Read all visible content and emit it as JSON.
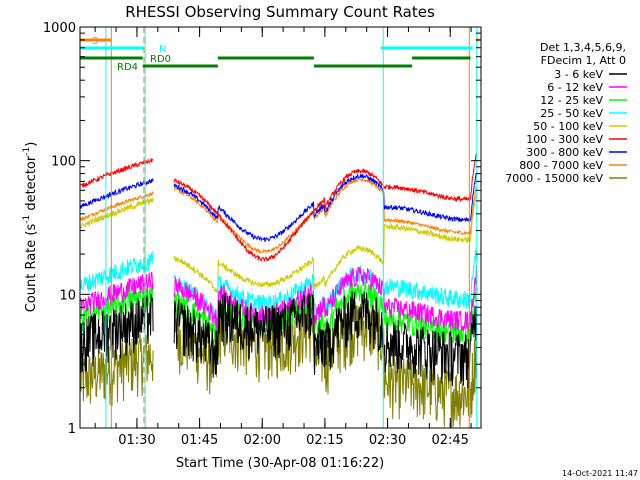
{
  "chart_data": {
    "type": "line",
    "title": "RHESSI Observing Summary Count Rates",
    "xlabel": "Start Time (30-Apr-08 01:16:22)",
    "ylabel_main": "Count Rate (s",
    "ylabel_sup1": "-1",
    "ylabel_mid": " detector",
    "ylabel_sup2": "-1",
    "ylabel_end": ")",
    "yscale": "log",
    "ylim": [
      1,
      1000
    ],
    "xlim_minutes": [
      0,
      96
    ],
    "x_start": "01:16:22",
    "xticks": [
      {
        "t": 13.63,
        "label": "01:30"
      },
      {
        "t": 28.63,
        "label": "01:45"
      },
      {
        "t": 43.63,
        "label": "02:00"
      },
      {
        "t": 58.63,
        "label": "02:15"
      },
      {
        "t": 73.63,
        "label": "02:30"
      },
      {
        "t": 88.63,
        "label": "02:45"
      }
    ],
    "yticks": [
      {
        "v": 1,
        "label": "1"
      },
      {
        "v": 10,
        "label": "10"
      },
      {
        "v": 100,
        "label": "100"
      },
      {
        "v": 1000,
        "label": "1000"
      }
    ],
    "legend_header": [
      "Det 1,3,4,5,6,9,",
      "FDecim 1, Att 0"
    ],
    "series": [
      {
        "name": "3 - 6 keV",
        "color": "#000000",
        "night": 4.5,
        "base": 7,
        "bump": 4,
        "level": 2.4,
        "noise": 0.45
      },
      {
        "name": "6 - 12 keV",
        "color": "#ff00ff",
        "night": 8,
        "base": 12.5,
        "bump": 4,
        "level": 3.2,
        "noise": 0.18
      },
      {
        "name": "12 - 25 keV",
        "color": "#00ff00",
        "night": 6.5,
        "base": 9.5,
        "bump": 4,
        "level": 3,
        "noise": 0.22
      },
      {
        "name": "25 - 50 keV",
        "color": "#00ffff",
        "night": 11.5,
        "base": 13,
        "bump": 5.5,
        "level": 3.6,
        "noise": 0.16
      },
      {
        "name": "50 - 100 keV",
        "color": "#cccc00",
        "night": 32,
        "base": 20,
        "bump": 7,
        "level": 15,
        "noise": 0.05
      },
      {
        "name": "100 - 300 keV",
        "color": "#ff0000",
        "night": 64,
        "base": 76,
        "bump": 0,
        "level": 54,
        "noise": 0.04
      },
      {
        "name": "300 - 800 keV",
        "color": "#0000ff",
        "night": 45,
        "base": 70,
        "bump": 9,
        "level": 42,
        "noise": 0.04
      },
      {
        "name": "800 - 7000 keV",
        "color": "#ff8000",
        "night": 36,
        "base": 66,
        "bump": 5,
        "level": 34,
        "noise": 0.03
      },
      {
        "name": "7000 - 15000 keV",
        "color": "#808000",
        "night": 2.3,
        "base": 5.5,
        "bump": 3,
        "level": 1.8,
        "noise": 0.5
      }
    ],
    "gaps": [
      [
        17.5,
        22.5
      ],
      [
        95.0,
        96.0
      ]
    ],
    "status_bars": {
      "S": {
        "label": "S",
        "color": "#ff8000",
        "segments": [
          [
            0,
            7.5
          ],
          [
            94.8,
            95.6
          ]
        ]
      },
      "N": {
        "label": "N",
        "color": "#00ffff",
        "segments": [
          [
            0,
            15.2
          ],
          [
            72.0,
            94.0
          ]
        ]
      },
      "RD0": {
        "label": "RD0",
        "color": "#008000",
        "segments": [
          [
            0,
            15.0
          ],
          [
            33.0,
            56.0
          ],
          [
            79.5,
            93.5
          ]
        ]
      },
      "RD4": {
        "label": "RD4",
        "color": "#008000",
        "segments": [
          [
            15.0,
            33.0
          ],
          [
            56.0,
            79.5
          ]
        ]
      }
    },
    "vlines": [
      {
        "t": 6.2,
        "color": "#00ffff",
        "dash": false
      },
      {
        "t": 7.5,
        "color": "#ff8000",
        "dash": false
      },
      {
        "t": 15.3,
        "color": "#ff8000",
        "dash": true
      },
      {
        "t": 15.6,
        "color": "#00ffff",
        "dash": false
      },
      {
        "t": 72.6,
        "color": "#00ffff",
        "dash": false
      },
      {
        "t": 93.2,
        "color": "#ff8000",
        "dash": false
      },
      {
        "t": 95.0,
        "color": "#00ffff",
        "dash": false
      }
    ]
  },
  "footer": {
    "date": "14-Oct-2021 11:47"
  }
}
